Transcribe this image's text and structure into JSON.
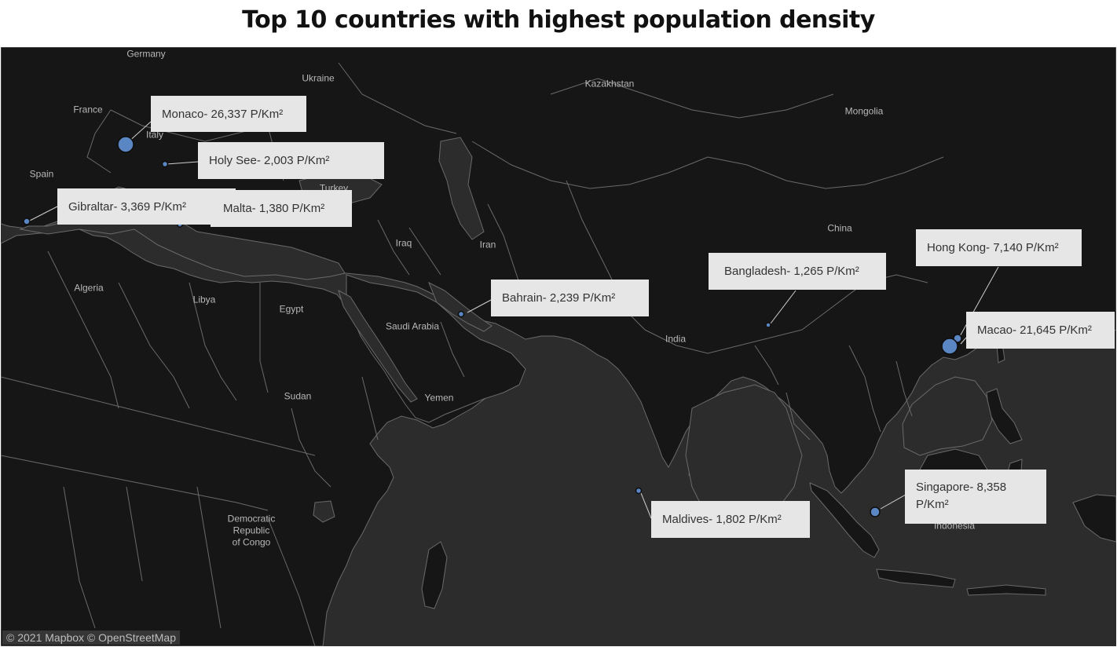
{
  "title": "Top 10 countries with highest population density",
  "attribution": "© 2021 Mapbox © OpenStreetMap",
  "colors": {
    "ocean": "#2c2c2c",
    "land": "#161616",
    "border": "#6e6e6e",
    "marker": "#5b86c4",
    "label_bg": "#e6e6e6"
  },
  "geo_labels": {
    "germany": "Germany",
    "ukraine": "Ukraine",
    "kazakhstan": "Kazakhstan",
    "mongolia": "Mongolia",
    "france": "France",
    "italy": "Italy",
    "spain": "Spain",
    "turkey": "Turkey",
    "iraq": "Iraq",
    "iran": "Iran",
    "china": "China",
    "algeria": "Algeria",
    "libya": "Libya",
    "egypt": "Egypt",
    "saudi_arabia": "Saudi Arabia",
    "india": "India",
    "sudan": "Sudan",
    "yemen": "Yemen",
    "drc_1": "Democratic",
    "drc_2": "Republic",
    "drc_3": "of Congo",
    "indonesia": "Indonesia"
  },
  "countries": [
    {
      "name": "Monaco",
      "density": "26,337",
      "unit": "P/Km²",
      "label": "Monaco- 26,337 P/Km²"
    },
    {
      "name": "Holy See",
      "density": "2,003",
      "unit": "P/Km²",
      "label": "Holy See- 2,003 P/Km²"
    },
    {
      "name": "Gibraltar",
      "density": "3,369",
      "unit": "P/Km²",
      "label": "Gibraltar- 3,369 P/Km²"
    },
    {
      "name": "Malta",
      "density": "1,380",
      "unit": "P/Km²",
      "label": "Malta- 1,380 P/Km²"
    },
    {
      "name": "Bahrain",
      "density": "2,239",
      "unit": "P/Km²",
      "label": "Bahrain- 2,239 P/Km²"
    },
    {
      "name": "Bangladesh",
      "density": "1,265",
      "unit": "P/Km²",
      "label": "Bangladesh- 1,265 P/Km²"
    },
    {
      "name": "Hong Kong",
      "density": "7,140",
      "unit": "P/Km²",
      "label": "Hong Kong- 7,140 P/Km²"
    },
    {
      "name": "Macao",
      "density": "21,645",
      "unit": "P/Km²",
      "label": "Macao- 21,645 P/Km²"
    },
    {
      "name": "Singapore",
      "density": "8,358",
      "unit": "P/Km²",
      "label": "Singapore- 8,358 P/Km²"
    },
    {
      "name": "Maldives",
      "density": "1,802",
      "unit": "P/Km²",
      "label": "Maldives- 1,802 P/Km²"
    }
  ]
}
